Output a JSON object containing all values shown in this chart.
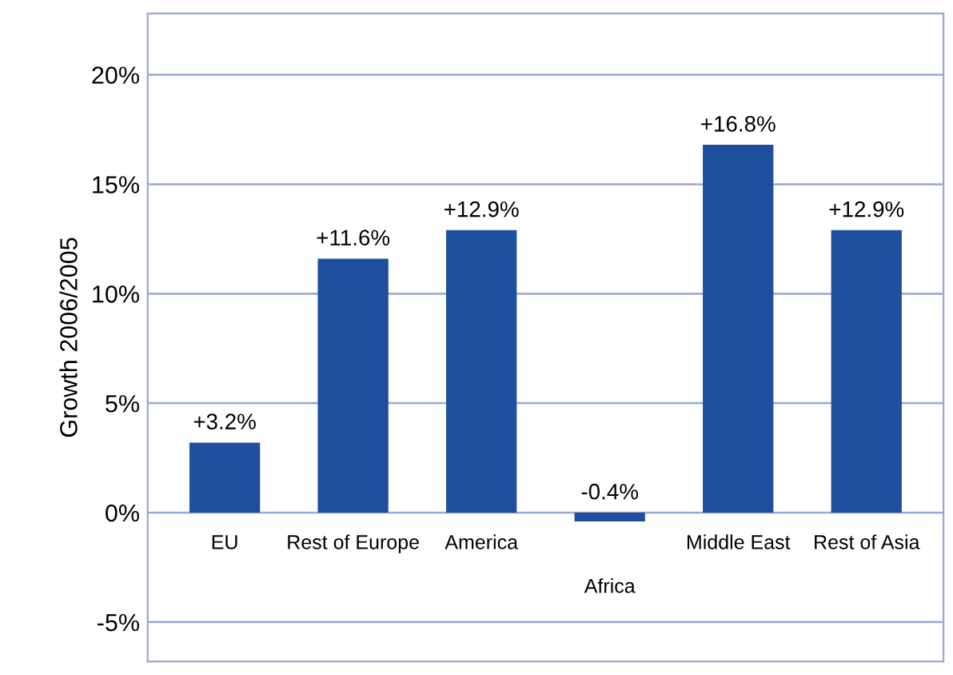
{
  "chart_data": {
    "type": "bar",
    "ylabel": "Growth 2006/2005",
    "categories": [
      "EU",
      "Rest of Europe",
      "America",
      "Africa",
      "Middle East",
      "Rest of Asia"
    ],
    "values": [
      3.2,
      11.6,
      12.9,
      -0.4,
      16.8,
      12.9
    ],
    "value_labels": [
      "+3.2%",
      "+11.6%",
      "+12.9%",
      "-0.4%",
      "+16.8%",
      "+12.9%"
    ],
    "color": "#1d4f9e",
    "ylim": [
      -6.8,
      22.8
    ],
    "yticks": [
      {
        "value": -5,
        "label": "-5%"
      },
      {
        "value": 0,
        "label": "0%"
      },
      {
        "value": 5,
        "label": "5%"
      },
      {
        "value": 10,
        "label": "10%"
      },
      {
        "value": 15,
        "label": "15%"
      },
      {
        "value": 20,
        "label": "20%"
      }
    ],
    "grid": "y",
    "legend": false
  }
}
